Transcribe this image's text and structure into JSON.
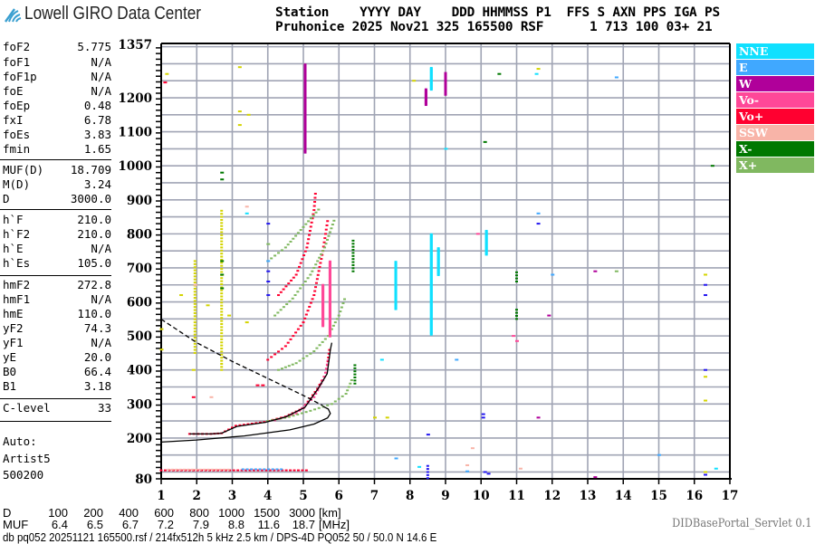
{
  "logo": {
    "text": "Lowell GIRO Data Center",
    "color": "#3a9fd0"
  },
  "header": {
    "line1": "Station    YYYY DAY    DDD HHMMSS P1  FFS S AXN PPS IGA PS",
    "line2": "Pruhonice 2025 Nov21 325 165500 RSF      1 713 100 03+ 21"
  },
  "params": [
    {
      "label": "foF2",
      "value": "5.775"
    },
    {
      "label": "foF1",
      "value": "N/A"
    },
    {
      "label": "foF1p",
      "value": "N/A"
    },
    {
      "label": "foE",
      "value": "N/A"
    },
    {
      "label": "foEp",
      "value": "0.48"
    },
    {
      "label": "fxI",
      "value": "6.78"
    },
    {
      "label": "foEs",
      "value": "3.83"
    },
    {
      "label": "fmin",
      "value": "1.65"
    },
    {
      "label": "MUF(D)",
      "value": "18.709"
    },
    {
      "label": "M(D)",
      "value": "3.24"
    },
    {
      "label": "D",
      "value": "3000.0"
    },
    {
      "label": "h`F",
      "value": "210.0"
    },
    {
      "label": "h`F2",
      "value": "210.0"
    },
    {
      "label": "h`E",
      "value": "N/A"
    },
    {
      "label": "h`Es",
      "value": "105.0"
    },
    {
      "label": "hmF2",
      "value": "272.8"
    },
    {
      "label": "hmF1",
      "value": "N/A"
    },
    {
      "label": "hmE",
      "value": "110.0"
    },
    {
      "label": "yF2",
      "value": "74.3"
    },
    {
      "label": "yF1",
      "value": "N/A"
    },
    {
      "label": "yE",
      "value": "20.0"
    },
    {
      "label": "B0",
      "value": "66.4"
    },
    {
      "label": "B1",
      "value": "3.18"
    },
    {
      "label": "C-level",
      "value": "33"
    }
  ],
  "autoscaling": {
    "line1": "Auto:",
    "line2": "Artist5",
    "line3": "500200"
  },
  "legend": [
    {
      "label": "NNE",
      "color": "#10e0ff"
    },
    {
      "label": "E",
      "color": "#40a8ff"
    },
    {
      "label": "W",
      "color": "#b0009a"
    },
    {
      "label": "Vo-",
      "color": "#ff4898"
    },
    {
      "label": "Vo+",
      "color": "#ff0030"
    },
    {
      "label": "SSW",
      "color": "#f8b4a8"
    },
    {
      "label": "X-",
      "color": "#007800"
    },
    {
      "label": "X+",
      "color": "#80b860"
    }
  ],
  "other_colors": {
    "Y": "#d4d400",
    "B": "#2418f0",
    "grid": "#a0a4b4",
    "profile": "#000000"
  },
  "muf_table": {
    "d_label": "D",
    "d_values": [
      "100",
      "200",
      "400",
      "600",
      "800",
      "1000",
      "1500",
      "3000"
    ],
    "d_unit": "[km]",
    "muf_label": "MUF",
    "muf_values": [
      "6.4",
      "6.5",
      "6.7",
      "7.2",
      "7.9",
      "8.8",
      "11.6",
      "18.7"
    ],
    "muf_unit": "[MHz]"
  },
  "footer": "db pq052 20251121 165500.rsf / 214fx512h 5 kHz 2.5 km / DPS-4D PQ052 50 / 50.0 N 14.6 E",
  "servlet": "DIDBasePortal_Servlet 0.1",
  "chart_data": {
    "type": "scatter",
    "xlim": [
      1,
      17
    ],
    "ylim": [
      80,
      1357
    ],
    "x_ticks": [
      "1",
      "2",
      "3",
      "4",
      "5",
      "6",
      "7",
      "8",
      "9",
      "10",
      "11",
      "12",
      "13",
      "14",
      "15",
      "16",
      "17"
    ],
    "y_ticks": [
      "1357",
      "1200",
      "1100",
      "1000",
      "900",
      "800",
      "700",
      "600",
      "500",
      "400",
      "300",
      "200",
      "80"
    ],
    "grid": true,
    "grid_step_height": 50,
    "grid_step_freq": 1,
    "profile_lines": [
      {
        "style": "solid",
        "points": [
          [
            1.8,
            212
          ],
          [
            2.4,
            212
          ],
          [
            2.7,
            214
          ],
          [
            3.13,
            234
          ],
          [
            3.93,
            246
          ],
          [
            4.5,
            262
          ],
          [
            5.04,
            290
          ],
          [
            5.42,
            346
          ],
          [
            5.67,
            389
          ],
          [
            5.76,
            459
          ],
          [
            5.8,
            480
          ]
        ]
      },
      {
        "style": "solid",
        "points": [
          [
            1.0,
            188
          ],
          [
            1.99,
            194
          ],
          [
            3.34,
            206
          ],
          [
            4.62,
            224
          ],
          [
            5.3,
            241
          ],
          [
            5.68,
            259
          ],
          [
            5.76,
            272
          ],
          [
            5.7,
            285
          ],
          [
            5.55,
            293
          ]
        ]
      },
      {
        "style": "dashed",
        "points": [
          [
            1.0,
            549
          ],
          [
            2.0,
            480
          ],
          [
            3.0,
            425
          ],
          [
            4.0,
            375
          ],
          [
            5.0,
            325
          ],
          [
            5.55,
            295
          ]
        ]
      }
    ],
    "traces": [
      {
        "color": "Vo+",
        "points": [
          [
            1.8,
            212
          ],
          [
            2.4,
            212
          ],
          [
            2.7,
            214
          ],
          [
            3.1,
            236
          ],
          [
            3.9,
            247
          ],
          [
            4.5,
            263
          ],
          [
            5.0,
            288
          ],
          [
            5.4,
            345
          ],
          [
            5.65,
            392
          ],
          [
            5.75,
            470
          ]
        ]
      },
      {
        "color": "Vo-",
        "points": [
          [
            4.2,
            252
          ],
          [
            4.8,
            272
          ],
          [
            5.3,
            320
          ],
          [
            5.6,
            380
          ],
          [
            5.72,
            440
          ]
        ]
      },
      {
        "color": "X+",
        "points": [
          [
            4.0,
            250
          ],
          [
            4.6,
            262
          ],
          [
            5.2,
            280
          ],
          [
            5.8,
            300
          ],
          [
            6.2,
            330
          ],
          [
            6.4,
            380
          ]
        ]
      },
      {
        "color": "X+",
        "points": [
          [
            4.3,
            400
          ],
          [
            4.8,
            420
          ],
          [
            5.3,
            455
          ],
          [
            5.7,
            500
          ],
          [
            6.0,
            560
          ],
          [
            6.2,
            620
          ]
        ]
      },
      {
        "color": "Vo+",
        "points": [
          [
            4.0,
            430
          ],
          [
            4.5,
            470
          ],
          [
            5.0,
            540
          ],
          [
            5.3,
            620
          ],
          [
            5.55,
            750
          ],
          [
            5.7,
            850
          ]
        ]
      },
      {
        "color": "X+",
        "points": [
          [
            4.2,
            560
          ],
          [
            4.7,
            610
          ],
          [
            5.2,
            680
          ],
          [
            5.6,
            760
          ],
          [
            5.9,
            850
          ]
        ]
      },
      {
        "color": "Vo+",
        "points": [
          [
            4.3,
            620
          ],
          [
            4.8,
            680
          ],
          [
            5.1,
            760
          ],
          [
            5.3,
            870
          ],
          [
            5.35,
            930
          ]
        ]
      },
      {
        "color": "X+",
        "points": [
          [
            4.0,
            720
          ],
          [
            4.5,
            760
          ],
          [
            5.0,
            820
          ],
          [
            5.5,
            880
          ]
        ]
      },
      {
        "color": "Vo+",
        "points": [
          [
            1.0,
            105
          ],
          [
            5.2,
            105
          ]
        ]
      },
      {
        "color": "E",
        "points": [
          [
            3.3,
            108
          ],
          [
            4.5,
            108
          ]
        ]
      },
      {
        "color": "SSW",
        "points": [
          [
            1.2,
            107
          ],
          [
            3.0,
            107
          ]
        ]
      }
    ],
    "segments": [
      {
        "f": 5.05,
        "h": [
          1040,
          1300
        ],
        "color": "W"
      },
      {
        "f": 5.75,
        "h": [
          500,
          720
        ],
        "color": "Vo-"
      },
      {
        "f": 5.55,
        "h": [
          530,
          650
        ],
        "color": "Vo-"
      },
      {
        "f": 6.4,
        "h": [
          690,
          780
        ],
        "color": "X-"
      },
      {
        "f": 6.45,
        "h": [
          360,
          420
        ],
        "color": "X-"
      },
      {
        "f": 2.7,
        "h": [
          400,
          870
        ],
        "color": "Y"
      },
      {
        "f": 1.95,
        "h": [
          450,
          720
        ],
        "color": "Y"
      },
      {
        "f": 7.6,
        "h": [
          580,
          720
        ],
        "color": "NNE"
      },
      {
        "f": 8.6,
        "h": [
          505,
          800
        ],
        "color": "NNE"
      },
      {
        "f": 8.8,
        "h": [
          680,
          760
        ],
        "color": "NNE"
      },
      {
        "f": 8.6,
        "h": [
          1225,
          1290
        ],
        "color": "NNE"
      },
      {
        "f": 9.0,
        "h": [
          1210,
          1275
        ],
        "color": "W"
      },
      {
        "f": 8.45,
        "h": [
          1180,
          1225
        ],
        "color": "W"
      },
      {
        "f": 10.15,
        "h": [
          740,
          810
        ],
        "color": "NNE"
      },
      {
        "f": 11.0,
        "h": [
          660,
          690
        ],
        "color": "X-"
      },
      {
        "f": 11.0,
        "h": [
          550,
          580
        ],
        "color": "X-"
      },
      {
        "f": 8.5,
        "h": [
          82,
          125
        ],
        "color": "B"
      }
    ],
    "points": [
      [
        1.15,
        1270,
        "Y"
      ],
      [
        1.1,
        1245,
        "Vo+"
      ],
      [
        3.2,
        1290,
        "Y"
      ],
      [
        3.2,
        1160,
        "Y"
      ],
      [
        3.45,
        1150,
        "Y"
      ],
      [
        3.2,
        1120,
        "Y"
      ],
      [
        2.7,
        980,
        "X-"
      ],
      [
        2.7,
        960,
        "X-"
      ],
      [
        1.95,
        650,
        "SSW"
      ],
      [
        1.55,
        620,
        "Y"
      ],
      [
        1.0,
        520,
        "Y"
      ],
      [
        1.0,
        460,
        "Y"
      ],
      [
        3.4,
        880,
        "SSW"
      ],
      [
        3.4,
        860,
        "NNE"
      ],
      [
        4.0,
        830,
        "B"
      ],
      [
        4.0,
        770,
        "X+"
      ],
      [
        4.0,
        720,
        "E"
      ],
      [
        4.0,
        690,
        "B"
      ],
      [
        4.0,
        660,
        "B"
      ],
      [
        4.0,
        620,
        "B"
      ],
      [
        2.7,
        720,
        "X-"
      ],
      [
        2.7,
        680,
        "X-"
      ],
      [
        2.7,
        640,
        "X-"
      ],
      [
        2.3,
        590,
        "Y"
      ],
      [
        2.9,
        560,
        "Y"
      ],
      [
        3.4,
        540,
        "Y"
      ],
      [
        1.9,
        400,
        "Y"
      ],
      [
        1.9,
        320,
        "Vo+"
      ],
      [
        2.4,
        320,
        "SSW"
      ],
      [
        3.7,
        355,
        "Vo+"
      ],
      [
        3.85,
        355,
        "Vo+"
      ],
      [
        7.2,
        430,
        "NNE"
      ],
      [
        10.1,
        1070,
        "X-"
      ],
      [
        10.5,
        1270,
        "X-"
      ],
      [
        13.8,
        1260,
        "E"
      ],
      [
        16.5,
        1000,
        "X-"
      ],
      [
        11.6,
        830,
        "B"
      ],
      [
        11.6,
        860,
        "E"
      ],
      [
        13.2,
        690,
        "W"
      ],
      [
        13.8,
        690,
        "X+"
      ],
      [
        16.3,
        680,
        "Y"
      ],
      [
        16.3,
        650,
        "B"
      ],
      [
        16.3,
        620,
        "B"
      ],
      [
        11.9,
        560,
        "W"
      ],
      [
        10.9,
        500,
        "Vo-"
      ],
      [
        11.0,
        485,
        "Vo-"
      ],
      [
        9.3,
        430,
        "E"
      ],
      [
        10.05,
        270,
        "B"
      ],
      [
        10.05,
        260,
        "B"
      ],
      [
        8.5,
        210,
        "B"
      ],
      [
        16.3,
        400,
        "B"
      ],
      [
        16.3,
        380,
        "Y"
      ],
      [
        16.3,
        310,
        "Y"
      ],
      [
        16.6,
        110,
        "NNE"
      ],
      [
        15.0,
        150,
        "E"
      ],
      [
        13.2,
        85,
        "W"
      ],
      [
        11.1,
        110,
        "SSW"
      ],
      [
        11.6,
        260,
        "W"
      ],
      [
        9.75,
        170,
        "SSW"
      ],
      [
        9.6,
        120,
        "SSW"
      ],
      [
        9.6,
        102,
        "E"
      ],
      [
        10.1,
        100,
        "B"
      ],
      [
        10.2,
        95,
        "B"
      ],
      [
        7.0,
        260,
        "Y"
      ],
      [
        7.35,
        260,
        "Y"
      ],
      [
        9.0,
        1050,
        "NNE"
      ],
      [
        8.1,
        1250,
        "Y"
      ],
      [
        11.6,
        1285,
        "Y"
      ],
      [
        11.55,
        1270,
        "NNE"
      ],
      [
        9.9,
        800,
        "Vo-"
      ],
      [
        12.0,
        680,
        "E"
      ],
      [
        8.25,
        115,
        "NNE"
      ],
      [
        7.6,
        140,
        "E"
      ],
      [
        16.3,
        100,
        "Y"
      ],
      [
        16.3,
        92,
        "B"
      ]
    ]
  }
}
